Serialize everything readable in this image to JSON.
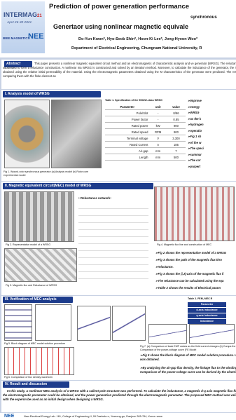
{
  "header": {
    "logo": "INTERMAG",
    "logo_year": "21",
    "dates": "April 26-30 2021",
    "society": "IEEE MAGNETICS",
    "lab": "NEE",
    "title_line1": "Prediction of power generation performance",
    "title_note": "synchronous",
    "title_line2": "Genertaor using nonlinear magnetic equivale",
    "authors": "Do-Yun Kwon*, Hyo-Seob Shin*, Hoon-Ki Lee*, Jong-Hyeon Woo*",
    "affiliation": "Department of Electrical Engineering, Chungnam National University, R"
  },
  "abstract": {
    "label": "Abstract",
    "text": "This paper presents a nonlinear magnetic equivalent circuit method and an electromagnetic of characteristic analysis and ve generator (WRSG). The reluctance generated by the stator, rotor, and air-gap is subdivided to form a reluctance construction. A nonlinear ma WRSG is constructed and solved by an iteration method. Moreover, to calculate the inductance of the generator, the reluctance circuit of the d- of the generator was obtained using the relative initial permeability of the material. Using the electromagnetic parameters obtained using the M characteristics of the generator were predicted. The results of this MEC method were also verified by comparing them with the finite element an"
  },
  "section1": {
    "heading": "I.   Analysis model of WRSG",
    "figure_caption": "Fig 1. Wound-rotor synchronous generator (a) Analysis model (b) Rotor core experimental model",
    "table_caption": "Table 1. Specification of the 900kW-class WRSG",
    "table": {
      "header": [
        "Parameter",
        "unit",
        "value"
      ],
      "rows": [
        [
          "Pole/Slot",
          "-",
          "8/96"
        ],
        [
          "Power factor",
          "-",
          "0.85"
        ],
        [
          "Rated power",
          "kW",
          "900"
        ],
        [
          "Rated speed",
          "RPM",
          "900"
        ],
        [
          "Terminal voltage",
          "V",
          "3,300"
        ],
        [
          "Rated Current",
          "A",
          "185"
        ],
        [
          "Air-gap",
          "mm",
          "7"
        ],
        [
          "Length",
          "mm",
          "500"
        ]
      ]
    },
    "bullets": [
      "Improve",
      "energy",
      "WRSG",
      "as the k",
      "hydrogen",
      "operatio",
      "Fig 1 sh",
      "of the w",
      "The speci",
      "summar",
      "The cor",
      "propert"
    ]
  },
  "section2": {
    "heading": "II.   Magnetic equivalent circuit(MEC) model of WRSG",
    "fig2_caption": "Fig 2. Representative model of a WRSG",
    "network_label": "Reluctance network:",
    "fig3_caption": "Fig 3. Magnetic flux and Reluctance of WRSG",
    "fig4_caption": "Fig 4. Magnetic flux line and construction of MEC",
    "bullets": [
      "Fig 2 shows the representative model of a WRSG",
      "Fig 3 shows the path of the magnetic flux thro",
      "reluctance.",
      "Fig 3 shows the (i,J)-axis of the magnetic flux li",
      "The reluctance can be calculated using the equ",
      "Table 2 shows the results of Electrical param"
    ],
    "table2": {
      "caption": "Table 2. FEM, MEC R",
      "rows": [
        "Parameter",
        "d-axis Inductance",
        "q-axis Inductance",
        "Inductance"
      ]
    }
  },
  "section3": {
    "heading": "III.   Verification of MEC analysis",
    "fig5_caption": "Fig 5. Block diagram of MEC model solution procedure",
    "fig6_caption": "Fig 6. Comparison of flux density waveform",
    "fig7_caption": "Fig 7. (a) Comparison of back EMF values as the field current changes (b) Compa the field current changes (c), (d) Comparison of the power-voltage curve (FE Model",
    "bullets": [
      "Fig 5 shows the block diagram of MEC model solution procedure. Using the iterat saturation was obtained.",
      "By analyzing the air-gap flux density, the linkage flux to the windings of one phas In addition, Comparison of the power-voltage curve can be derived by the electric"
    ]
  },
  "section4": {
    "heading": "IV.   Result and discussion",
    "text": "In this study, a nonlinear MEC analysis of a WRSG with a salient pole structure was performed. To calculate the inductance, a magnetic d-q axis magnetic flux flow. Through the result of the MEC, the electromagnetic parameter could be obtained, and the power generation predicted through the electromagnetic parameter. The proposed MEC method was validated by comparing the FE results with the experim be used as an initial design when designing a WRSG."
  },
  "footer": {
    "text": "New Electrical Energy Lab. 161, College of Engineering II, 99 Daehak-ro, Yuseong-gu, Daejeon 305-764, Korea. www"
  }
}
